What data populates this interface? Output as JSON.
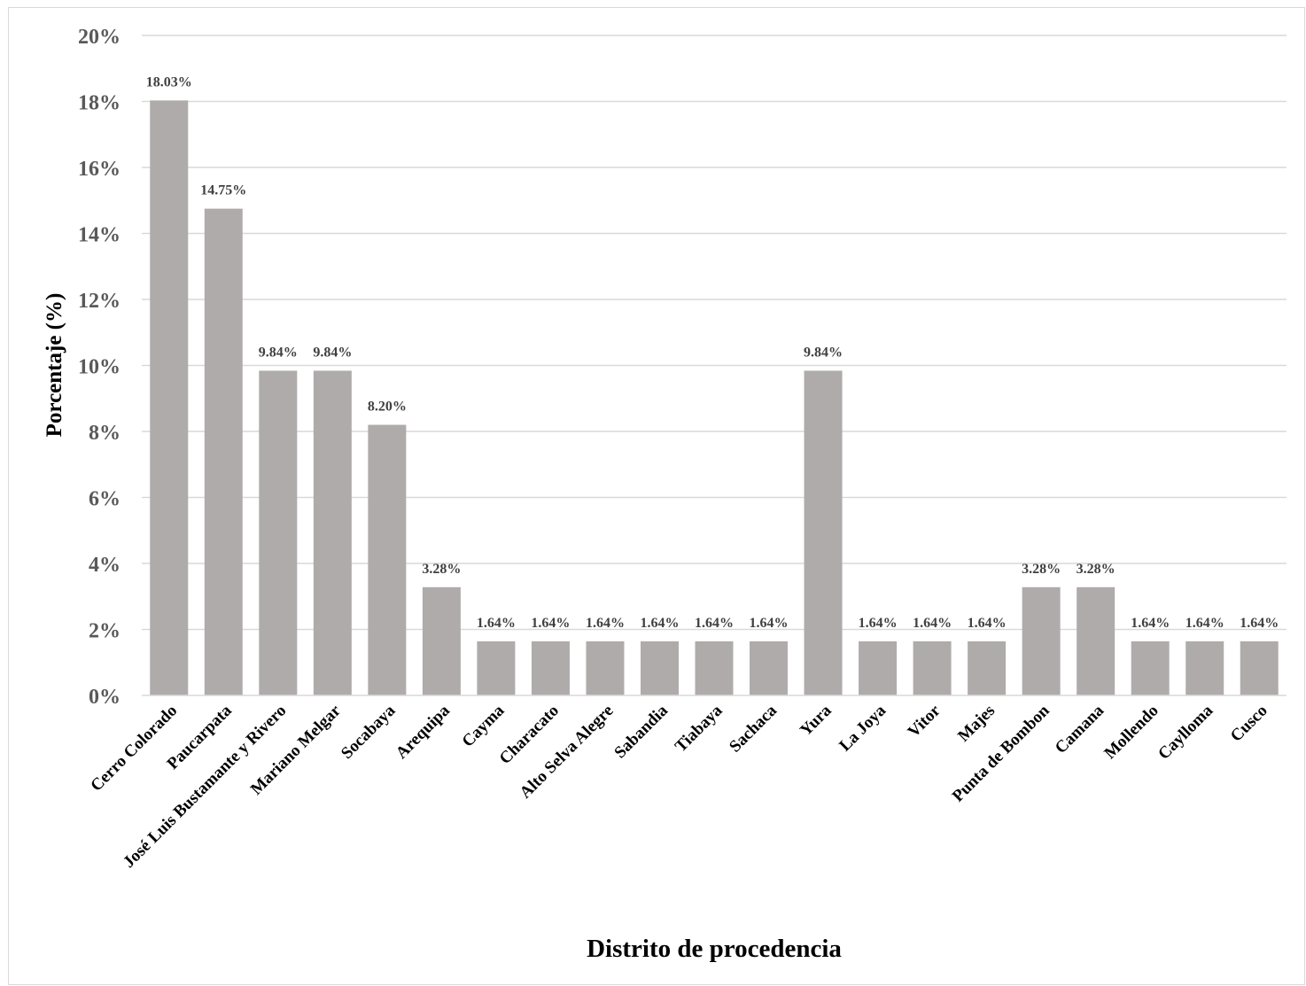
{
  "chart_data": {
    "type": "bar",
    "title": "",
    "xlabel": "Distrito de procedencia",
    "ylabel": "Porcentaje (%)",
    "ylim": [
      0,
      20
    ],
    "yticks": [
      "0%",
      "2%",
      "4%",
      "6%",
      "8%",
      "10%",
      "12%",
      "14%",
      "16%",
      "18%",
      "20%"
    ],
    "grid": true,
    "legend": "none",
    "bar_color": "#afabab",
    "categories": [
      "Cerro Colorado",
      "Paucarpata",
      "José Luis Bustamante y Rivero",
      "Mariano Melgar",
      "Socabaya",
      "Arequipa",
      "Cayma",
      "Characato",
      "Alto Selva Alegre",
      "Sabandia",
      "Tiabaya",
      "Sachaca",
      "Yura",
      "La Joya",
      "Vitor",
      "Majes",
      "Punta de Bombon",
      "Camana",
      "Mollendo",
      "Caylloma",
      "Cusco"
    ],
    "values": [
      18.03,
      14.75,
      9.84,
      9.84,
      8.2,
      3.28,
      1.64,
      1.64,
      1.64,
      1.64,
      1.64,
      1.64,
      9.84,
      1.64,
      1.64,
      1.64,
      3.28,
      3.28,
      1.64,
      1.64,
      1.64
    ],
    "data_labels": [
      "18.03%",
      "14.75%",
      "9.84%",
      "9.84%",
      "8.20%",
      "3.28%",
      "1.64%",
      "1.64%",
      "1.64%",
      "1.64%",
      "1.64%",
      "1.64%",
      "9.84%",
      "1.64%",
      "1.64%",
      "1.64%",
      "3.28%",
      "3.28%",
      "1.64%",
      "1.64%",
      "1.64%"
    ]
  }
}
